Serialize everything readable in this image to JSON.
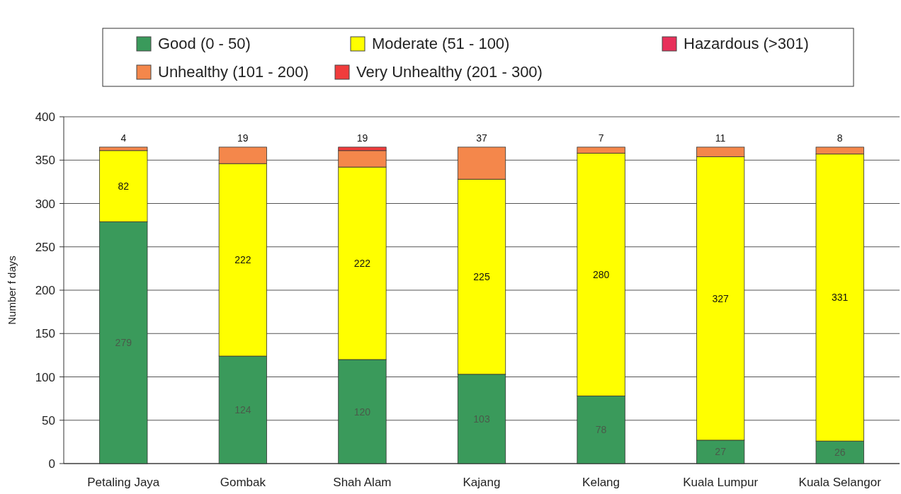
{
  "chart_data": {
    "type": "bar",
    "stacked": true,
    "ylabel": "Number f days",
    "categories": [
      "Petaling Jaya",
      "Gombak",
      "Shah Alam",
      "Kajang",
      "Kelang",
      "Kuala Lumpur",
      "Kuala Selangor"
    ],
    "series": [
      {
        "name": "Good (0 - 50)",
        "color": "#3a9a5b",
        "values": [
          279,
          124,
          120,
          103,
          78,
          27,
          26
        ],
        "value_labels": [
          "279",
          "124",
          "120",
          "103",
          "78",
          "27",
          "26"
        ]
      },
      {
        "name": "Moderate (51 - 100)",
        "color": "#ffff00",
        "values": [
          82,
          222,
          222,
          225,
          280,
          327,
          331
        ],
        "value_labels": [
          "82",
          "222",
          "222",
          "225",
          "280",
          "327",
          "331"
        ]
      },
      {
        "name": "Unhealthy (101 - 200)",
        "color": "#f4874b",
        "values": [
          4,
          19,
          19,
          37,
          7,
          11,
          8
        ],
        "value_labels": [
          "4",
          "19",
          "19",
          "37",
          "7",
          "11",
          "8"
        ]
      },
      {
        "name": "Very Unhealthy (201 - 300)",
        "color": "#f03c3c",
        "values": [
          0,
          0,
          4,
          0,
          0,
          0,
          0
        ]
      },
      {
        "name": "Hazardous (>301)",
        "color": "#e8305a",
        "values": [
          0,
          0,
          0,
          0,
          0,
          0,
          0
        ]
      }
    ],
    "ylim": [
      0,
      400
    ],
    "yticks": [
      0,
      50,
      100,
      150,
      200,
      250,
      300,
      350,
      400
    ],
    "grid": "y",
    "legend": "top"
  }
}
